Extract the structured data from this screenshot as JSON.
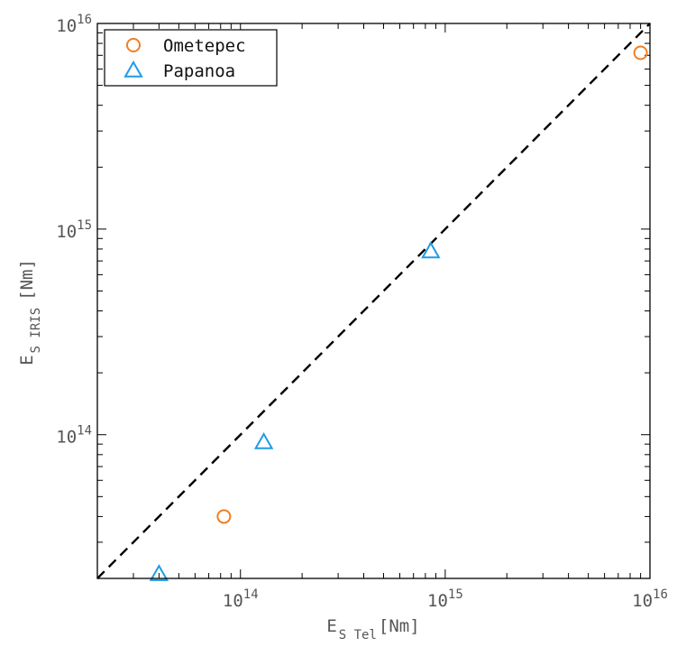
{
  "chart_data": {
    "type": "scatter",
    "title": "",
    "xlabel": {
      "main": "E",
      "sub": "S Tel",
      "unit": "[Nm]"
    },
    "ylabel": {
      "main": "E",
      "sub": "S IRIS",
      "unit": "[Nm]"
    },
    "x_scale": "log",
    "y_scale": "log",
    "xlim": [
      20000000000000.0,
      1e+16
    ],
    "ylim": [
      20000000000000.0,
      1e+16
    ],
    "grid": false,
    "legend_position": "top-left",
    "x_major_ticks": [
      {
        "value": 100000000000000.0,
        "base": "10",
        "exp": "14"
      },
      {
        "value": 1000000000000000.0,
        "base": "10",
        "exp": "15"
      },
      {
        "value": 1e+16,
        "base": "10",
        "exp": "16"
      }
    ],
    "y_major_ticks": [
      {
        "value": 100000000000000.0,
        "base": "10",
        "exp": "14"
      },
      {
        "value": 1000000000000000.0,
        "base": "10",
        "exp": "15"
      },
      {
        "value": 1e+16,
        "base": "10",
        "exp": "16"
      }
    ],
    "series": [
      {
        "name": "Ometepec",
        "marker": "circle",
        "color": "#f07f22",
        "points": [
          {
            "x": 83000000000000.0,
            "y": 40000000000000.0
          },
          {
            "x": 9000000000000000.0,
            "y": 7200000000000000.0
          }
        ]
      },
      {
        "name": "Papanoa",
        "marker": "triangle",
        "color": "#1f9be6",
        "points": [
          {
            "x": 40000000000000.0,
            "y": 21000000000000.0
          },
          {
            "x": 130000000000000.0,
            "y": 92000000000000.0
          },
          {
            "x": 850000000000000.0,
            "y": 780000000000000.0
          }
        ]
      }
    ],
    "reference_line": {
      "kind": "1:1",
      "style": "dashed",
      "color": "#000000",
      "from": [
        20000000000000.0,
        20000000000000.0
      ],
      "to": [
        1e+16,
        1e+16
      ]
    }
  }
}
